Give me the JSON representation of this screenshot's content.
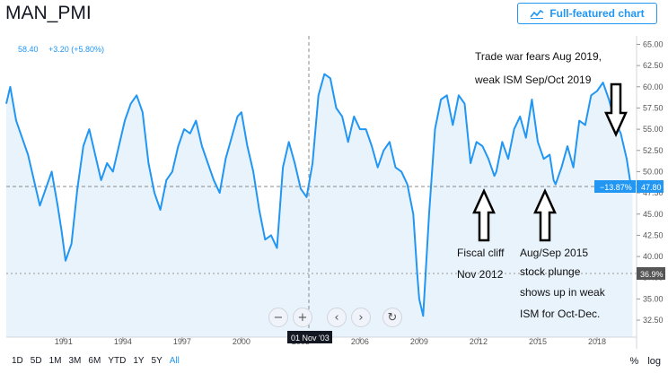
{
  "header": {
    "title": "MAN_PMI",
    "full_chart_label": "Full-featured chart"
  },
  "legend": {
    "value": "58.40",
    "change": "+3.20 (+5.80%)"
  },
  "crosshair_date_label": "01 Nov '03",
  "current_value_label": "47.80",
  "current_pct_label": "−13.87%",
  "ref_line_label": "36.9%",
  "timeframes": [
    "1D",
    "5D",
    "1M",
    "3M",
    "6M",
    "YTD",
    "1Y",
    "5Y",
    "All"
  ],
  "active_timeframe": "All",
  "scale_buttons": [
    "%",
    "log"
  ],
  "nav_icons": [
    "zoom-out-icon",
    "zoom-in-icon",
    "scroll-left-icon",
    "scroll-right-icon",
    "reset-icon"
  ],
  "colors": {
    "line": "#2196f3",
    "area": "#e9f3fc",
    "accent": "#2196f3",
    "price_label": "#2196f3",
    "ref_label": "#555555"
  },
  "annotations": [
    {
      "id": "trade-war",
      "lines": [
        "Trade war fears Aug 2019,",
        "weak ISM Sep/Oct 2019"
      ]
    },
    {
      "id": "fiscal-cliff",
      "lines": [
        "Fiscal cliff",
        "Nov 2012"
      ]
    },
    {
      "id": "aug-sep-2015",
      "lines": [
        "Aug/Sep 2015",
        "stock plunge",
        "shows up in weak",
        "ISM for Oct-Dec."
      ]
    }
  ],
  "chart_data": {
    "type": "line",
    "title": "MAN_PMI",
    "y_axis_side": "right",
    "y_ticks": [
      32.5,
      35.0,
      37.5,
      40.0,
      42.5,
      45.0,
      47.5,
      50.0,
      52.5,
      55.0,
      57.5,
      60.0,
      62.5,
      65.0
    ],
    "ylim": [
      30.5,
      66.0
    ],
    "x_ticks": [
      "1991",
      "1994",
      "1997",
      "2000",
      "2003",
      "2006",
      "2009",
      "2012",
      "2015",
      "2018"
    ],
    "xlim": [
      1988.1,
      2020.0
    ],
    "grid": false,
    "series": [
      {
        "x": [
          1988.1,
          1988.3,
          1988.6,
          1988.9,
          1989.2,
          1989.5,
          1989.8,
          1990.1,
          1990.4,
          1990.7,
          1990.9,
          1991.1,
          1991.4,
          1991.7,
          1992.0,
          1992.3,
          1992.6,
          1992.9,
          1993.2,
          1993.5,
          1993.8,
          1994.1,
          1994.4,
          1994.7,
          1995.0,
          1995.3,
          1995.6,
          1995.9,
          1996.2,
          1996.5,
          1996.8,
          1997.1,
          1997.4,
          1997.7,
          1998.0,
          1998.3,
          1998.6,
          1998.9,
          1999.2,
          1999.5,
          1999.8,
          2000.0,
          2000.3,
          2000.6,
          2000.9,
          2001.2,
          2001.5,
          2001.8,
          2002.1,
          2002.4,
          2002.7,
          2003.0,
          2003.3,
          2003.6,
          2003.9,
          2004.2,
          2004.5,
          2004.8,
          2005.1,
          2005.4,
          2005.7,
          2006.0,
          2006.3,
          2006.6,
          2006.9,
          2007.2,
          2007.5,
          2007.8,
          2008.1,
          2008.4,
          2008.7,
          2008.9,
          2009.0,
          2009.2,
          2009.5,
          2009.8,
          2010.1,
          2010.4,
          2010.7,
          2011.0,
          2011.3,
          2011.6,
          2011.9,
          2012.2,
          2012.5,
          2012.8,
          2012.9,
          2013.2,
          2013.5,
          2013.8,
          2014.1,
          2014.4,
          2014.7,
          2015.0,
          2015.3,
          2015.6,
          2015.8,
          2015.9,
          2016.2,
          2016.5,
          2016.8,
          2017.1,
          2017.4,
          2017.7,
          2018.0,
          2018.3,
          2018.6,
          2018.9,
          2019.2,
          2019.5,
          2019.7,
          2019.8
        ],
        "y": [
          58.0,
          60.0,
          56.0,
          54.0,
          52.0,
          49.0,
          46.0,
          48.0,
          50.0,
          46.0,
          43.0,
          39.5,
          41.5,
          48.0,
          53.0,
          55.0,
          52.0,
          49.0,
          51.0,
          50.0,
          53.0,
          56.0,
          58.0,
          59.0,
          57.0,
          51.0,
          47.5,
          45.5,
          49.0,
          50.0,
          53.0,
          55.0,
          54.5,
          56.0,
          53.0,
          51.0,
          49.0,
          47.5,
          51.5,
          54.0,
          56.5,
          57.0,
          53.0,
          50.0,
          45.5,
          42.0,
          42.5,
          41.0,
          50.5,
          53.5,
          51.0,
          48.0,
          47.0,
          51.0,
          59.0,
          61.5,
          61.0,
          57.5,
          56.5,
          53.5,
          56.5,
          55.0,
          55.0,
          53.0,
          50.5,
          52.5,
          53.5,
          50.5,
          50.0,
          48.5,
          45.0,
          38.0,
          35.0,
          33.0,
          45.0,
          55.0,
          58.5,
          59.0,
          55.5,
          59.0,
          58.0,
          51.0,
          53.5,
          53.0,
          51.5,
          49.5,
          50.0,
          53.5,
          51.5,
          55.0,
          56.5,
          54.0,
          58.5,
          53.5,
          51.5,
          52.0,
          49.0,
          48.5,
          50.5,
          53.0,
          50.5,
          56.0,
          55.5,
          59.0,
          59.5,
          60.5,
          58.5,
          56.0,
          54.5,
          51.5,
          48.5,
          47.8
        ]
      }
    ]
  }
}
